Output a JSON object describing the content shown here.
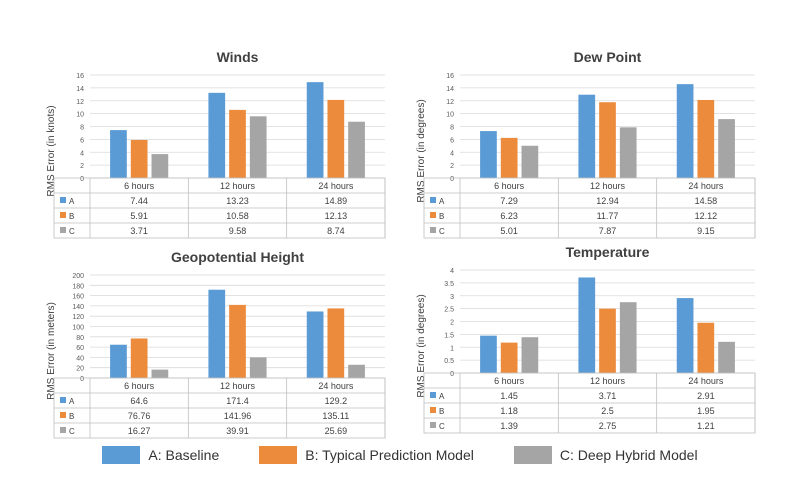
{
  "colors": {
    "A": "#5b9bd5",
    "B": "#ed8b3c",
    "C": "#a5a5a5"
  },
  "legend": [
    {
      "key": "A",
      "label": "A: Baseline"
    },
    {
      "key": "B",
      "label": "B: Typical Prediction Model"
    },
    {
      "key": "C",
      "label": "C: Deep Hybrid Model"
    }
  ],
  "chart_data": [
    {
      "type": "bar",
      "title": "Winds",
      "ylabel": "RMS Error (in knots)",
      "categories": [
        "6 hours",
        "12 hours",
        "24 hours"
      ],
      "ylim": [
        0,
        16
      ],
      "yticks": [
        0,
        2,
        4,
        6,
        8,
        10,
        12,
        14,
        16
      ],
      "series": [
        {
          "name": "A",
          "values": [
            7.44,
            13.23,
            14.89
          ],
          "labels": [
            "7.44",
            "13.23",
            "14.89"
          ]
        },
        {
          "name": "B",
          "values": [
            5.91,
            10.58,
            12.13
          ],
          "labels": [
            "5.91",
            "10.58",
            "12.13"
          ]
        },
        {
          "name": "C",
          "values": [
            3.71,
            9.58,
            8.74
          ],
          "labels": [
            "3.71",
            "9.58",
            "8.74"
          ]
        }
      ]
    },
    {
      "type": "bar",
      "title": "Dew Point",
      "ylabel": "RMS Error (in degrees)",
      "categories": [
        "6 hours",
        "12 hours",
        "24 hours"
      ],
      "ylim": [
        0,
        16
      ],
      "yticks": [
        0,
        2,
        4,
        6,
        8,
        10,
        12,
        14,
        16
      ],
      "series": [
        {
          "name": "A",
          "values": [
            7.29,
            12.94,
            14.58
          ],
          "labels": [
            "7.29",
            "12.94",
            "14.58"
          ]
        },
        {
          "name": "B",
          "values": [
            6.23,
            11.77,
            12.12
          ],
          "labels": [
            "6.23",
            "11.77",
            "12.12"
          ]
        },
        {
          "name": "C",
          "values": [
            5.01,
            7.87,
            9.15
          ],
          "labels": [
            "5.01",
            "7.87",
            "9.15"
          ]
        }
      ]
    },
    {
      "type": "bar",
      "title": "Geopotential Height",
      "ylabel": "RMS Error (in meters)",
      "categories": [
        "6 hours",
        "12 hours",
        "24 hours"
      ],
      "ylim": [
        0,
        200
      ],
      "yticks": [
        0,
        20,
        40,
        60,
        80,
        100,
        120,
        140,
        160,
        180,
        200
      ],
      "series": [
        {
          "name": "A",
          "values": [
            64.6,
            171.4,
            129.2
          ],
          "labels": [
            "64.6",
            "171.4",
            "129.2"
          ]
        },
        {
          "name": "B",
          "values": [
            76.76,
            141.96,
            135.11
          ],
          "labels": [
            "76.76",
            "141.96",
            "135.11"
          ]
        },
        {
          "name": "C",
          "values": [
            16.27,
            39.91,
            25.69
          ],
          "labels": [
            "16.27",
            "39.91",
            "25.69"
          ]
        }
      ]
    },
    {
      "type": "bar",
      "title": "Temperature",
      "ylabel": "RMS Error (in degrees)",
      "categories": [
        "6 hours",
        "12 hours",
        "24 hours"
      ],
      "ylim": [
        0,
        4
      ],
      "yticks": [
        0,
        0.5,
        1,
        1.5,
        2,
        2.5,
        3,
        3.5,
        4
      ],
      "series": [
        {
          "name": "A",
          "values": [
            1.45,
            3.71,
            2.91
          ],
          "labels": [
            "1.45",
            "3.71",
            "2.91"
          ]
        },
        {
          "name": "B",
          "values": [
            1.18,
            2.5,
            1.95
          ],
          "labels": [
            "1.18",
            "2.5",
            "1.95"
          ]
        },
        {
          "name": "C",
          "values": [
            1.39,
            2.75,
            1.21
          ],
          "labels": [
            "1.39",
            "2.75",
            "1.21"
          ]
        }
      ]
    }
  ]
}
